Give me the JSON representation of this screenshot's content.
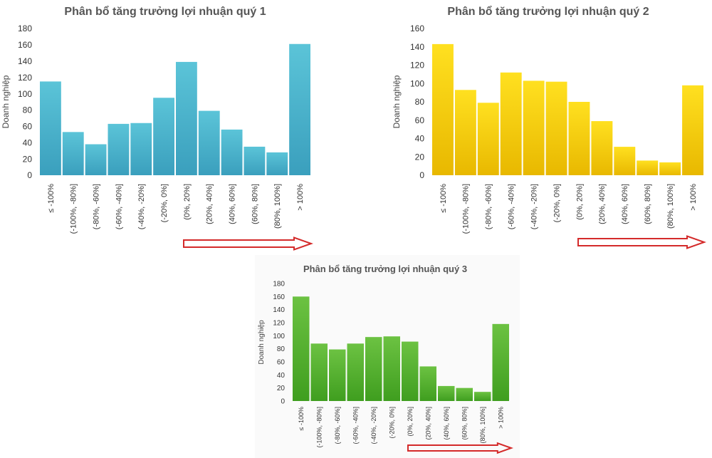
{
  "chart_data": [
    {
      "type": "bar",
      "title": "Phân bổ tăng trưởng lợi nhuận quý 1",
      "xlabel": "",
      "ylabel": "Doanh nghiệp",
      "ylim": [
        0,
        180
      ],
      "yticks": [
        0,
        20,
        40,
        60,
        80,
        100,
        120,
        140,
        160,
        180
      ],
      "categories": [
        "≤ -100%",
        "(-100%, -80%]",
        "(-80%, -60%]",
        "(-60%, -40%]",
        "(-40%, -20%]",
        "(-20%, 0%]",
        "(0%, 20%]",
        "(20%, 40%]",
        "(40%, 60%]",
        "(60%, 80%]",
        "(80%, 100%]",
        "> 100%"
      ],
      "values": [
        115,
        53,
        38,
        63,
        64,
        95,
        139,
        79,
        56,
        35,
        28,
        161
      ],
      "colors": {
        "bar_top": "#5bc4d8",
        "bar_bottom": "#3a9fbd",
        "arrow": "#d42a2a"
      },
      "annotation": "right-arrow"
    },
    {
      "type": "bar",
      "title": "Phân bổ tăng trưởng lợi nhuận quý 2",
      "xlabel": "",
      "ylabel": "Doanh nghiệp",
      "ylim": [
        0,
        160
      ],
      "yticks": [
        0,
        20,
        40,
        60,
        80,
        100,
        120,
        140,
        160
      ],
      "categories": [
        "≤ -100%",
        "(-100%, -80%]",
        "(-80%, -60%]",
        "(-60%, -40%]",
        "(-40%, -20%]",
        "(-20%, 0%]",
        "(0%, 20%]",
        "(20%, 40%]",
        "(40%, 60%]",
        "(60%, 80%]",
        "(80%, 100%]",
        "> 100%"
      ],
      "values": [
        143,
        93,
        79,
        112,
        103,
        102,
        80,
        59,
        31,
        16,
        14,
        98
      ],
      "colors": {
        "bar_top": "#ffe020",
        "bar_bottom": "#e8b800",
        "arrow": "#d42a2a"
      },
      "annotation": "right-arrow"
    },
    {
      "type": "bar",
      "title": "Phân bổ tăng trưởng lợi nhuận quý 3",
      "xlabel": "",
      "ylabel": "Doanh nghiệp",
      "ylim": [
        0,
        180
      ],
      "yticks": [
        0,
        20,
        40,
        60,
        80,
        100,
        120,
        140,
        160,
        180
      ],
      "categories": [
        "≤ -100%",
        "(-100%, -80%]",
        "(-80%, -60%]",
        "(-60%, -40%]",
        "(-40%, -20%]",
        "(-20%, 0%]",
        "(0%, 20%]",
        "(20%, 40%]",
        "(40%, 60%]",
        "(60%, 80%]",
        "(80%, 100%]",
        "> 100%"
      ],
      "values": [
        160,
        88,
        79,
        88,
        98,
        99,
        91,
        53,
        23,
        20,
        14,
        118
      ],
      "colors": {
        "bar_top": "#6cc242",
        "bar_bottom": "#3f9e1f",
        "arrow": "#d42a2a"
      },
      "annotation": "right-arrow"
    }
  ]
}
